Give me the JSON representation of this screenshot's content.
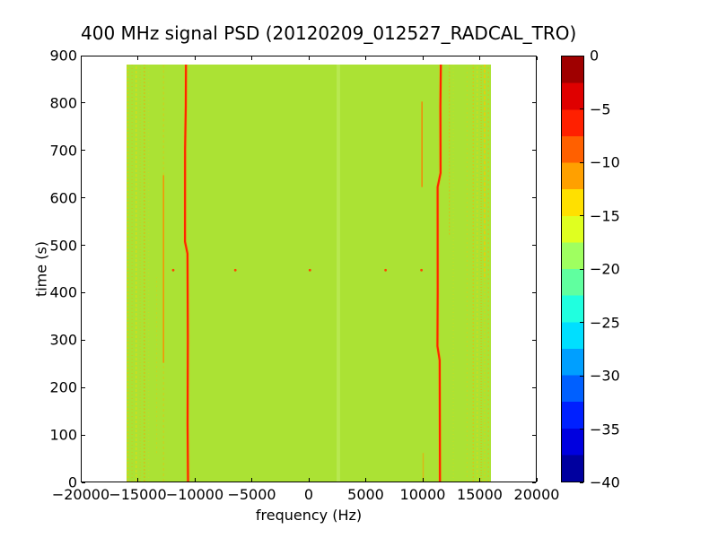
{
  "chart_data": {
    "type": "heatmap",
    "title": "400 MHz signal PSD (20120209_012527_RADCAL_TRO)",
    "xlabel": "frequency (Hz)",
    "ylabel": "time (s)",
    "xlim": [
      -20000,
      20000
    ],
    "ylim": [
      0,
      900
    ],
    "grid": false,
    "x_ticks": [
      -20000,
      -15000,
      -10000,
      -5000,
      0,
      5000,
      10000,
      15000,
      20000
    ],
    "x_tick_labels": [
      "−20000",
      "−15000",
      "−10000",
      "−5000",
      "0",
      "5000",
      "10000",
      "15000",
      "20000"
    ],
    "y_ticks": [
      0,
      100,
      200,
      300,
      400,
      500,
      600,
      700,
      800,
      900
    ],
    "y_tick_labels": [
      "0",
      "100",
      "200",
      "300",
      "400",
      "500",
      "600",
      "700",
      "800",
      "900"
    ],
    "data_extent": {
      "freq_hz": [
        -16000,
        16000
      ],
      "time_s": [
        0,
        878
      ]
    },
    "background_level_db": -17,
    "background_color": "#abe234",
    "colorbar": {
      "colormap": "jet",
      "range_db": [
        0,
        -40
      ],
      "ticks": [
        0,
        -5,
        -10,
        -15,
        -20,
        -25,
        -30,
        -35,
        -40
      ],
      "tick_labels": [
        "0",
        "−5",
        "−10",
        "−15",
        "−20",
        "−25",
        "−30",
        "−35",
        "−40"
      ],
      "colors_top_to_bottom": [
        "#9f0000",
        "#df0000",
        "#ff2000",
        "#ff6000",
        "#ffa000",
        "#ffe000",
        "#dfff20",
        "#9fff60",
        "#60ff9f",
        "#20ffdf",
        "#00dfff",
        "#009fff",
        "#0060ff",
        "#0020ff",
        "#0000df",
        "#00009f"
      ]
    },
    "features": {
      "carrier_lines": [
        {
          "name": "left-carrier-line",
          "color": "#ff2400",
          "halo_color": "#ffa000",
          "width": 2.2,
          "path": [
            {
              "t": 0,
              "f": -10600
            },
            {
              "t": 120,
              "f": -10640
            },
            {
              "t": 300,
              "f": -10620
            },
            {
              "t": 480,
              "f": -10650
            },
            {
              "t": 505,
              "f": -10870
            },
            {
              "t": 700,
              "f": -10860
            },
            {
              "t": 790,
              "f": -10800
            },
            {
              "t": 878,
              "f": -10780
            }
          ]
        },
        {
          "name": "right-carrier-line",
          "color": "#ff2400",
          "halo_color": "#ffa000",
          "width": 2.2,
          "path": [
            {
              "t": 0,
              "f": 11520
            },
            {
              "t": 255,
              "f": 11500
            },
            {
              "t": 285,
              "f": 11300
            },
            {
              "t": 400,
              "f": 11330
            },
            {
              "t": 620,
              "f": 11320
            },
            {
              "t": 650,
              "f": 11580
            },
            {
              "t": 790,
              "f": 11560
            },
            {
              "t": 878,
              "f": 11600
            }
          ]
        }
      ],
      "streaks": [
        {
          "f": -15880,
          "t0": 0,
          "t1": 878,
          "color": "#ffc400",
          "opacity": 0.55,
          "w": 1.6,
          "dash": "2 2"
        },
        {
          "f": -15520,
          "t0": 0,
          "t1": 878,
          "color": "#ffa000",
          "opacity": 0.4,
          "w": 1.2,
          "dash": "1 3"
        },
        {
          "f": -15160,
          "t0": 0,
          "t1": 878,
          "color": "#ffd800",
          "opacity": 0.5,
          "w": 1.4,
          "dash": "3 2"
        },
        {
          "f": -14800,
          "t0": 0,
          "t1": 878,
          "color": "#ffb000",
          "opacity": 0.35,
          "w": 1.0,
          "dash": "1 2"
        },
        {
          "f": -14430,
          "t0": 0,
          "t1": 878,
          "color": "#ff9800",
          "opacity": 0.5,
          "w": 1.4,
          "dash": "2 2"
        },
        {
          "f": -14050,
          "t0": 0,
          "t1": 878,
          "color": "#ffd800",
          "opacity": 0.3,
          "w": 1.0,
          "dash": "1 3"
        },
        {
          "f": -13350,
          "t0": 60,
          "t1": 430,
          "color": "#ffc400",
          "opacity": 0.35,
          "w": 1.0,
          "dash": "2 3"
        },
        {
          "f": -12750,
          "t0": 250,
          "t1": 645,
          "color": "#ff8800",
          "opacity": 0.85,
          "w": 1.6,
          "dash": ""
        },
        {
          "f": -12750,
          "t0": 0,
          "t1": 250,
          "color": "#ffb000",
          "opacity": 0.4,
          "w": 1.2,
          "dash": "3 3"
        },
        {
          "f": -12750,
          "t0": 645,
          "t1": 878,
          "color": "#ffb000",
          "opacity": 0.4,
          "w": 1.2,
          "dash": "3 3"
        },
        {
          "f": 9950,
          "t0": 620,
          "t1": 800,
          "color": "#ff7800",
          "opacity": 0.8,
          "w": 1.6,
          "dash": ""
        },
        {
          "f": 10050,
          "t0": 0,
          "t1": 60,
          "color": "#ff9800",
          "opacity": 0.6,
          "w": 1.4,
          "dash": ""
        },
        {
          "f": 12350,
          "t0": 520,
          "t1": 878,
          "color": "#ffa000",
          "opacity": 0.5,
          "w": 1.2,
          "dash": "2 2"
        },
        {
          "f": 12700,
          "t0": 0,
          "t1": 878,
          "color": "#ffd800",
          "opacity": 0.3,
          "w": 1.0,
          "dash": "1 3"
        },
        {
          "f": 13900,
          "t0": 0,
          "t1": 878,
          "color": "#ffc400",
          "opacity": 0.35,
          "w": 1.0,
          "dash": "2 3"
        },
        {
          "f": 14450,
          "t0": 0,
          "t1": 878,
          "color": "#ffb000",
          "opacity": 0.5,
          "w": 1.4,
          "dash": "2 2"
        },
        {
          "f": 14800,
          "t0": 0,
          "t1": 878,
          "color": "#ffd800",
          "opacity": 0.45,
          "w": 1.2,
          "dash": "3 2"
        },
        {
          "f": 15150,
          "t0": 0,
          "t1": 878,
          "color": "#ffa000",
          "opacity": 0.5,
          "w": 1.4,
          "dash": "1 2"
        },
        {
          "f": 15450,
          "t0": 430,
          "t1": 878,
          "color": "#ffc400",
          "opacity": 0.75,
          "w": 1.8,
          "dash": "4 2"
        },
        {
          "f": 15450,
          "t0": 0,
          "t1": 430,
          "color": "#ffc400",
          "opacity": 0.45,
          "w": 1.4,
          "dash": "2 2"
        },
        {
          "f": 15780,
          "t0": 0,
          "t1": 878,
          "color": "#ffb000",
          "opacity": 0.45,
          "w": 1.2,
          "dash": "2 3"
        }
      ],
      "speckle_row": {
        "t": 445,
        "color": "#ff4400",
        "freqs": [
          -11900,
          -6450,
          100,
          6750,
          9900
        ]
      },
      "light_band": {
        "f": 2600,
        "width_hz": 300,
        "color": "#c2ec66",
        "opacity": 0.6
      }
    }
  }
}
